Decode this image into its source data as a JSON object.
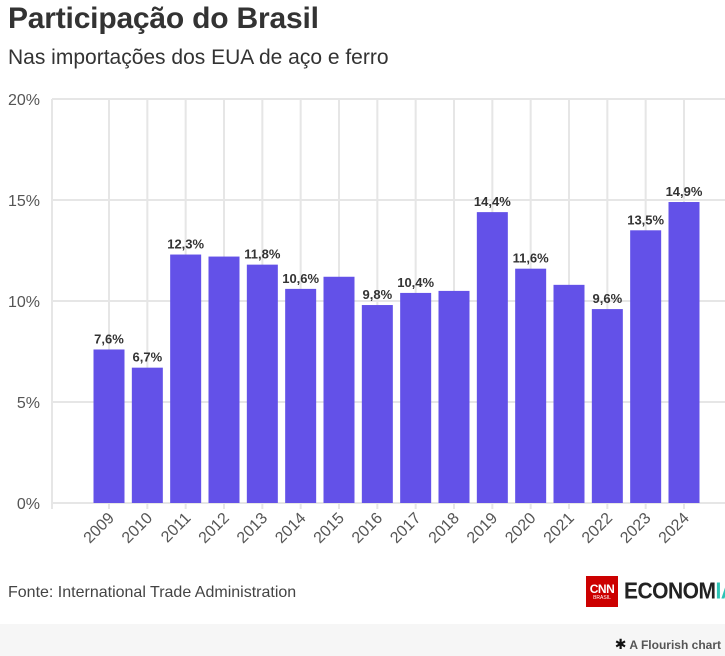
{
  "header": {
    "title": "Participação do Brasil",
    "subtitle": "Nas importações dos EUA de aço e ferro"
  },
  "footer": {
    "source": "Fonte: International Trade Administration",
    "logo_cnn": "CNN",
    "logo_brasil": "BRASIL",
    "logo_economia_main": "ECONOM",
    "logo_economia_accent": "IA",
    "flourish_icon": "asterisk-star-icon",
    "flourish_label": "A Flourish chart"
  },
  "colors": {
    "bar": "#6351e8",
    "grid": "#e6e6e6",
    "text": "#333333",
    "brand_red": "#cc0000",
    "accent_teal": "#2ec4b6"
  },
  "chart_data": {
    "type": "bar",
    "title": "Participação do Brasil",
    "subtitle": "Nas importações dos EUA de aço e ferro",
    "xlabel": "",
    "ylabel": "",
    "ylim": [
      0,
      20
    ],
    "yticks": [
      0,
      5,
      10,
      15,
      20
    ],
    "ytick_labels": [
      "0%",
      "5%",
      "10%",
      "15%",
      "20%"
    ],
    "grid": true,
    "categories": [
      "2009",
      "2010",
      "2011",
      "2012",
      "2013",
      "2014",
      "2015",
      "2016",
      "2017",
      "2018",
      "2019",
      "2020",
      "2021",
      "2022",
      "2023",
      "2024"
    ],
    "values": [
      7.6,
      6.7,
      12.3,
      12.2,
      11.8,
      10.6,
      11.2,
      9.8,
      10.4,
      10.5,
      14.4,
      11.6,
      10.8,
      9.6,
      13.5,
      14.9
    ],
    "data_labels": [
      "7,6%",
      "6,7%",
      "12,3%",
      "",
      "11,8%",
      "10,6%",
      "",
      "9,8%",
      "10,4%",
      "",
      "14,4%",
      "11,6%",
      "",
      "9,6%",
      "13,5%",
      "14,9%"
    ],
    "legend": "none"
  }
}
